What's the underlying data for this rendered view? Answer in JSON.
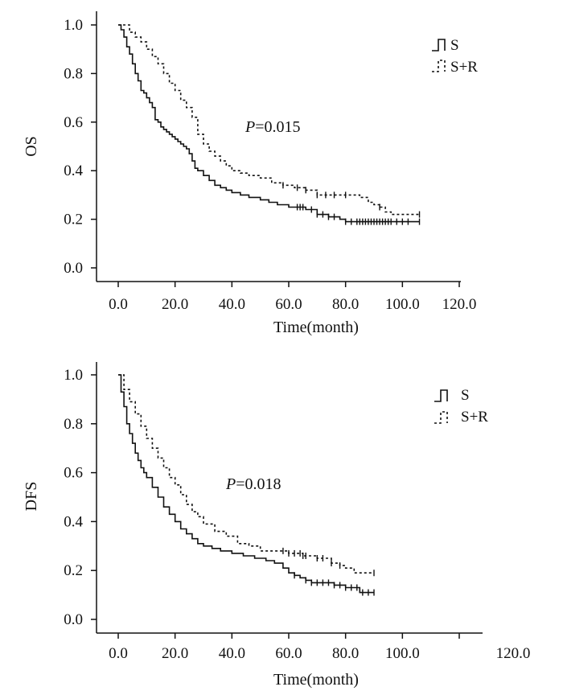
{
  "chart_data": [
    {
      "type": "line",
      "chart_subtype": "kaplan-meier",
      "ylabel": "OS",
      "xlabel": "Time(month)",
      "xlim": [
        0,
        120
      ],
      "ylim": [
        0,
        1
      ],
      "x_ticks": [
        0,
        20,
        40,
        60,
        80,
        100,
        120
      ],
      "x_tick_labels": [
        "0.0",
        "20.0",
        "40.0",
        "60.0",
        "80.0",
        "100.0",
        "120.0"
      ],
      "y_ticks": [
        0,
        0.2,
        0.4,
        0.6,
        0.8,
        1.0
      ],
      "y_tick_labels": [
        "0.0",
        "0.2",
        "0.4",
        "0.6",
        "0.8",
        "1.0"
      ],
      "annotation": {
        "italic": "P",
        "text": "=0.015"
      },
      "legend_position": "top-right",
      "grid": false,
      "series": [
        {
          "name": "S",
          "line_style": "solid",
          "x": [
            0,
            1,
            2,
            3,
            4,
            5,
            6,
            7,
            8,
            9,
            10,
            11,
            12,
            13,
            14,
            15,
            16,
            17,
            18,
            19,
            20,
            21,
            22,
            23,
            24,
            25,
            26,
            27,
            28,
            30,
            32,
            34,
            36,
            38,
            40,
            43,
            46,
            50,
            53,
            56,
            60,
            63,
            66,
            70,
            74,
            78,
            80,
            85,
            90,
            95,
            100,
            106
          ],
          "y": [
            1.0,
            0.98,
            0.95,
            0.91,
            0.88,
            0.84,
            0.8,
            0.77,
            0.73,
            0.72,
            0.7,
            0.68,
            0.66,
            0.61,
            0.6,
            0.58,
            0.57,
            0.56,
            0.55,
            0.54,
            0.53,
            0.52,
            0.51,
            0.5,
            0.49,
            0.47,
            0.44,
            0.41,
            0.4,
            0.38,
            0.36,
            0.34,
            0.33,
            0.32,
            0.31,
            0.3,
            0.29,
            0.28,
            0.27,
            0.26,
            0.25,
            0.25,
            0.24,
            0.22,
            0.21,
            0.2,
            0.19,
            0.19,
            0.19,
            0.19,
            0.19,
            0.19
          ],
          "censor_x": [
            63,
            64,
            65,
            68,
            70,
            72,
            74,
            76,
            80,
            82,
            84,
            85,
            86,
            87,
            88,
            89,
            90,
            91,
            92,
            93,
            94,
            95,
            96,
            98,
            100,
            102,
            106
          ]
        },
        {
          "name": "S+R",
          "line_style": "dashed",
          "x": [
            0,
            2,
            4,
            6,
            8,
            10,
            12,
            14,
            16,
            18,
            20,
            22,
            24,
            26,
            28,
            30,
            32,
            34,
            36,
            38,
            40,
            43,
            46,
            50,
            54,
            58,
            62,
            66,
            70,
            75,
            80,
            85,
            88,
            90,
            92,
            94,
            96,
            100,
            106
          ],
          "y": [
            1.0,
            1.0,
            0.97,
            0.95,
            0.93,
            0.9,
            0.87,
            0.84,
            0.8,
            0.76,
            0.73,
            0.69,
            0.66,
            0.62,
            0.55,
            0.51,
            0.48,
            0.46,
            0.44,
            0.42,
            0.4,
            0.39,
            0.38,
            0.37,
            0.35,
            0.34,
            0.33,
            0.32,
            0.3,
            0.3,
            0.3,
            0.29,
            0.27,
            0.26,
            0.25,
            0.23,
            0.22,
            0.22,
            0.22
          ],
          "censor_x": [
            58,
            63,
            66,
            70,
            73,
            76,
            80,
            92,
            106
          ]
        }
      ]
    },
    {
      "type": "line",
      "chart_subtype": "kaplan-meier",
      "ylabel": "DFS",
      "xlabel": "Time(month)",
      "xlim": [
        0,
        120
      ],
      "ylim": [
        0,
        1
      ],
      "x_ticks": [
        0,
        20,
        40,
        60,
        80,
        100,
        120
      ],
      "x_tick_labels": [
        "0.0",
        "20.0",
        "40.0",
        "60.0",
        "80.0",
        "100.0",
        "120.0"
      ],
      "y_ticks": [
        0,
        0.2,
        0.4,
        0.6,
        0.8,
        1.0
      ],
      "y_tick_labels": [
        "0.0",
        "0.2",
        "0.4",
        "0.6",
        "0.8",
        "1.0"
      ],
      "annotation": {
        "italic": "P",
        "text": "=0.018"
      },
      "legend_position": "top-right",
      "grid": false,
      "series": [
        {
          "name": "S",
          "line_style": "solid",
          "x": [
            0,
            1,
            2,
            3,
            4,
            5,
            6,
            7,
            8,
            9,
            10,
            12,
            14,
            16,
            18,
            20,
            22,
            24,
            26,
            28,
            30,
            33,
            36,
            40,
            44,
            48,
            52,
            55,
            58,
            60,
            62,
            64,
            66,
            68,
            70,
            72,
            76,
            80,
            85,
            90
          ],
          "y": [
            1.0,
            0.93,
            0.87,
            0.8,
            0.76,
            0.72,
            0.68,
            0.65,
            0.62,
            0.6,
            0.58,
            0.54,
            0.5,
            0.46,
            0.43,
            0.4,
            0.37,
            0.35,
            0.33,
            0.31,
            0.3,
            0.29,
            0.28,
            0.27,
            0.26,
            0.25,
            0.24,
            0.23,
            0.21,
            0.19,
            0.18,
            0.17,
            0.16,
            0.15,
            0.15,
            0.15,
            0.14,
            0.13,
            0.11,
            0.11
          ],
          "censor_x": [
            62,
            66,
            68,
            70,
            72,
            74,
            76,
            78,
            80,
            82,
            84,
            86,
            88,
            90
          ]
        },
        {
          "name": "S+R",
          "line_style": "dashed",
          "x": [
            0,
            2,
            4,
            6,
            8,
            10,
            12,
            14,
            16,
            18,
            20,
            22,
            24,
            26,
            28,
            30,
            34,
            38,
            42,
            46,
            50,
            55,
            60,
            65,
            70,
            75,
            78,
            80,
            83,
            86,
            90
          ],
          "y": [
            1.0,
            0.94,
            0.89,
            0.84,
            0.79,
            0.74,
            0.7,
            0.66,
            0.62,
            0.58,
            0.55,
            0.51,
            0.47,
            0.44,
            0.42,
            0.39,
            0.36,
            0.34,
            0.31,
            0.3,
            0.28,
            0.28,
            0.27,
            0.26,
            0.25,
            0.23,
            0.22,
            0.21,
            0.19,
            0.19,
            0.19
          ],
          "censor_x": [
            58,
            60,
            62,
            64,
            65,
            66,
            70,
            72,
            75,
            78,
            90
          ]
        }
      ]
    }
  ]
}
